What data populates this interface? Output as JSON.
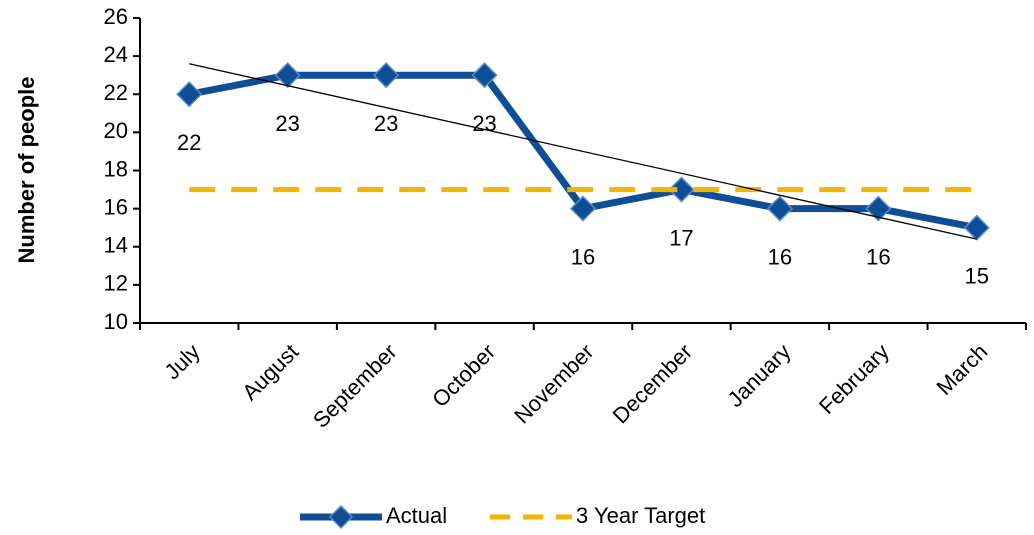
{
  "chart_data": {
    "type": "line",
    "y_label": "Number of people",
    "categories": [
      "July",
      "August",
      "September",
      "October",
      "November",
      "December",
      "January",
      "February",
      "March"
    ],
    "series": [
      {
        "name": "Actual",
        "color": "#0f4e96",
        "values": [
          22,
          23,
          23,
          23,
          16,
          17,
          16,
          16,
          15
        ],
        "marker": "diamond",
        "data_labels": true
      },
      {
        "name": "3 Year Target",
        "color": "#f2b400",
        "values": [
          17,
          17,
          17,
          17,
          17,
          17,
          17,
          17,
          17
        ],
        "dashed": true
      }
    ],
    "trendline": true,
    "ylim": [
      10,
      26
    ],
    "yticks": [
      10,
      12,
      14,
      16,
      18,
      20,
      22,
      24,
      26
    ],
    "legend": "bottom"
  }
}
